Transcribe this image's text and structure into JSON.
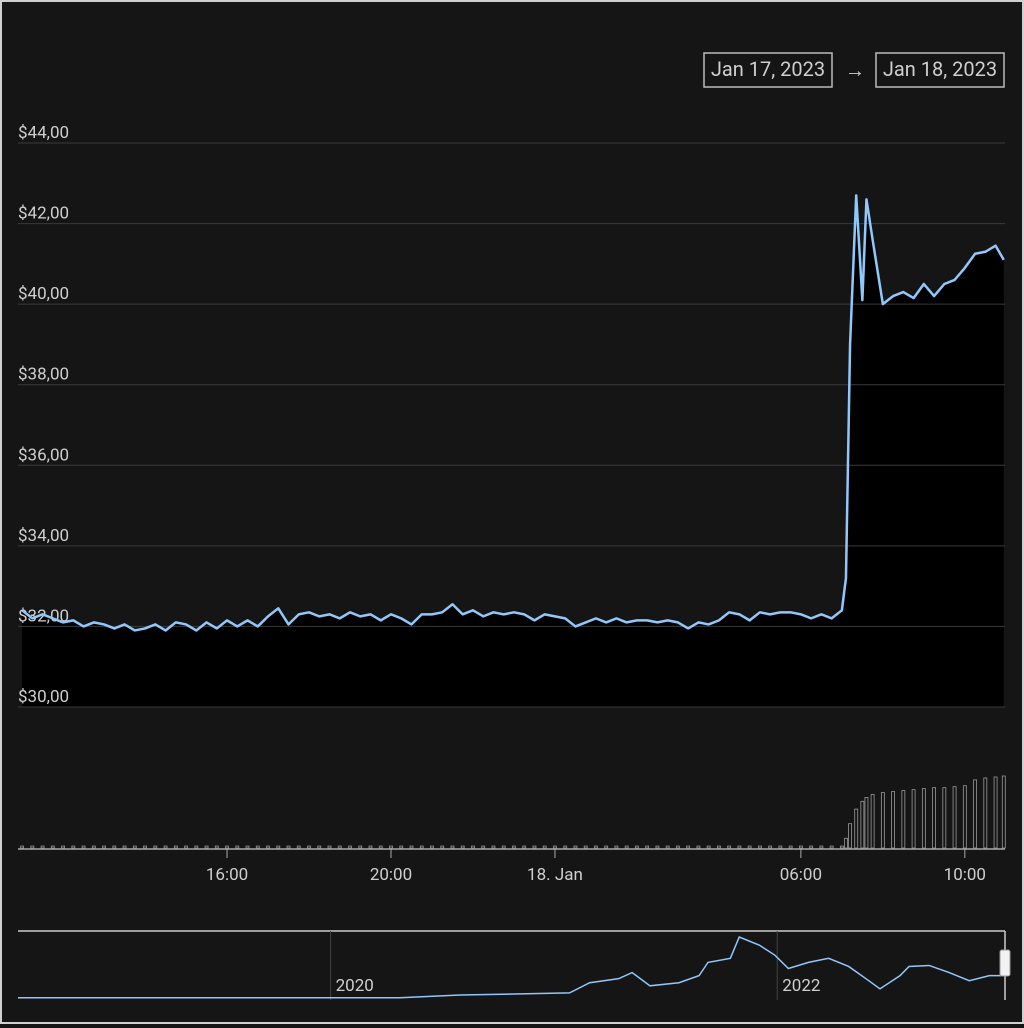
{
  "range_selector": {
    "from": "Jan 17, 2023",
    "separator": "→",
    "to": "Jan 18, 2023"
  },
  "chart_data": [
    {
      "type": "area",
      "color": "#90c8fb",
      "fill": "#000000",
      "grid": true,
      "x": [
        11,
        11.25,
        11.5,
        11.75,
        12,
        12.25,
        12.5,
        12.75,
        13,
        13.25,
        13.5,
        13.75,
        14,
        14.25,
        14.5,
        14.75,
        15,
        15.25,
        15.5,
        15.75,
        16,
        16.25,
        16.5,
        16.75,
        17,
        17.25,
        17.5,
        17.75,
        18,
        18.25,
        18.5,
        18.75,
        19,
        19.25,
        19.5,
        19.75,
        20,
        20.25,
        20.5,
        20.75,
        21,
        21.25,
        21.5,
        21.75,
        22,
        22.25,
        22.5,
        22.75,
        23,
        23.25,
        23.5,
        23.75,
        24,
        24.25,
        24.5,
        24.75,
        25,
        25.25,
        25.5,
        25.75,
        26,
        26.25,
        26.5,
        26.75,
        27,
        27.25,
        27.5,
        27.75,
        28,
        28.25,
        28.5,
        28.75,
        29,
        29.25,
        29.5,
        29.75,
        30,
        30.25,
        30.5,
        30.75,
        31,
        31.1,
        31.2,
        31.35,
        31.5,
        31.6,
        31.75,
        32,
        32.25,
        32.5,
        32.75,
        33,
        33.25,
        33.5,
        33.75,
        34,
        34.25,
        34.5,
        34.75,
        34.95
      ],
      "values": [
        32.4,
        32.2,
        32.3,
        32.2,
        32.1,
        32.15,
        32.0,
        32.1,
        32.05,
        31.95,
        32.05,
        31.9,
        31.95,
        32.05,
        31.9,
        32.1,
        32.05,
        31.9,
        32.1,
        31.95,
        32.15,
        32.0,
        32.15,
        32.0,
        32.25,
        32.45,
        32.05,
        32.3,
        32.35,
        32.25,
        32.3,
        32.2,
        32.35,
        32.25,
        32.3,
        32.15,
        32.3,
        32.2,
        32.05,
        32.3,
        32.3,
        32.35,
        32.55,
        32.3,
        32.4,
        32.25,
        32.35,
        32.3,
        32.35,
        32.3,
        32.15,
        32.3,
        32.25,
        32.2,
        32.0,
        32.1,
        32.2,
        32.1,
        32.2,
        32.1,
        32.15,
        32.15,
        32.1,
        32.15,
        32.1,
        31.95,
        32.1,
        32.05,
        32.15,
        32.35,
        32.3,
        32.15,
        32.35,
        32.3,
        32.35,
        32.35,
        32.3,
        32.2,
        32.3,
        32.2,
        32.4,
        33.2,
        39.0,
        42.7,
        40.1,
        42.6,
        41.6,
        40.0,
        40.2,
        40.3,
        40.15,
        40.5,
        40.2,
        40.5,
        40.6,
        40.9,
        41.25,
        41.3,
        41.45,
        41.1
      ],
      "xlim": [
        10.9,
        34.98
      ],
      "ylim": [
        30,
        44
      ],
      "yticks": [
        {
          "value": 30,
          "label": "$30,00"
        },
        {
          "value": 32,
          "label": "$32,00"
        },
        {
          "value": 34,
          "label": "$34,00"
        },
        {
          "value": 36,
          "label": "$36,00"
        },
        {
          "value": 38,
          "label": "$38,00"
        },
        {
          "value": 40,
          "label": "$40,00"
        },
        {
          "value": 42,
          "label": "$42,00"
        },
        {
          "value": 44,
          "label": "$44,00"
        }
      ],
      "xticks": [
        {
          "value": 16,
          "label": "16:00"
        },
        {
          "value": 20,
          "label": "20:00"
        },
        {
          "value": 24,
          "label": "18. Jan"
        },
        {
          "value": 30,
          "label": "06:00"
        },
        {
          "value": 34,
          "label": "10:00"
        }
      ]
    },
    {
      "type": "bar",
      "color": "#9a9a9a",
      "x": [
        11,
        11.25,
        11.5,
        11.75,
        12,
        12.25,
        12.5,
        12.75,
        13,
        13.25,
        13.5,
        13.75,
        14,
        14.25,
        14.5,
        14.75,
        15,
        15.25,
        15.5,
        15.75,
        16,
        16.25,
        16.5,
        16.75,
        17,
        17.25,
        17.5,
        17.75,
        18,
        18.25,
        18.5,
        18.75,
        19,
        19.25,
        19.5,
        19.75,
        20,
        20.25,
        20.5,
        20.75,
        21,
        21.25,
        21.5,
        21.75,
        22,
        22.25,
        22.5,
        22.75,
        23,
        23.25,
        23.5,
        23.75,
        24,
        24.25,
        24.5,
        24.75,
        25,
        25.25,
        25.5,
        25.75,
        26,
        26.25,
        26.5,
        26.75,
        27,
        27.25,
        27.5,
        27.75,
        28,
        28.25,
        28.5,
        28.75,
        29,
        29.25,
        29.5,
        29.75,
        30,
        30.25,
        30.5,
        30.75,
        31,
        31.1,
        31.2,
        31.35,
        31.5,
        31.6,
        31.75,
        32,
        32.25,
        32.5,
        32.75,
        33,
        33.25,
        33.5,
        33.75,
        34,
        34.25,
        34.5,
        34.75,
        34.95
      ],
      "values": [
        2,
        2,
        2,
        2,
        2,
        2,
        2,
        2,
        2,
        2,
        2,
        2,
        2,
        2,
        2,
        2,
        2,
        2,
        2,
        2,
        2,
        2,
        2,
        2,
        2,
        2,
        2,
        2,
        2,
        2,
        2,
        2,
        2,
        2,
        2,
        2,
        2,
        2,
        2,
        2,
        2,
        2,
        2,
        2,
        2,
        2,
        2,
        2,
        2,
        2,
        2,
        2,
        2,
        2,
        2,
        2,
        2,
        2,
        2,
        2,
        2,
        2,
        2,
        2,
        2,
        2,
        2,
        2,
        2,
        2,
        2,
        2,
        2,
        2,
        2,
        2,
        2,
        2,
        2,
        2,
        2,
        10,
        25,
        40,
        48,
        52,
        55,
        57,
        58,
        59,
        60,
        61,
        62,
        62,
        63,
        64,
        70,
        72,
        73,
        74
      ]
    },
    {
      "type": "line",
      "color": "#90c8fb",
      "x": [
        2018.6,
        2020.31,
        2020.58,
        2020.85,
        2021.07,
        2021.16,
        2021.29,
        2021.35,
        2021.43,
        2021.56,
        2021.65,
        2021.69,
        2021.79,
        2021.83,
        2021.92,
        2021.99,
        2022.05,
        2022.14,
        2022.23,
        2022.32,
        2022.41,
        2022.46,
        2022.55,
        2022.59,
        2022.68,
        2022.77,
        2022.86,
        2022.95,
        2023.02
      ],
      "values": [
        0.5,
        0.5,
        5.5,
        7.4,
        9.3,
        27.8,
        35.2,
        46.3,
        22.2,
        27.8,
        40.7,
        64.8,
        72.2,
        111,
        96.2,
        77.7,
        53.7,
        64.8,
        72.2,
        57.4,
        31.5,
        16.7,
        40.7,
        57.4,
        59.2,
        46.3,
        31.5,
        40.7,
        40.7
      ],
      "xlim": [
        2018.6,
        2023.02
      ],
      "xticks": [
        2020,
        2022
      ]
    }
  ]
}
